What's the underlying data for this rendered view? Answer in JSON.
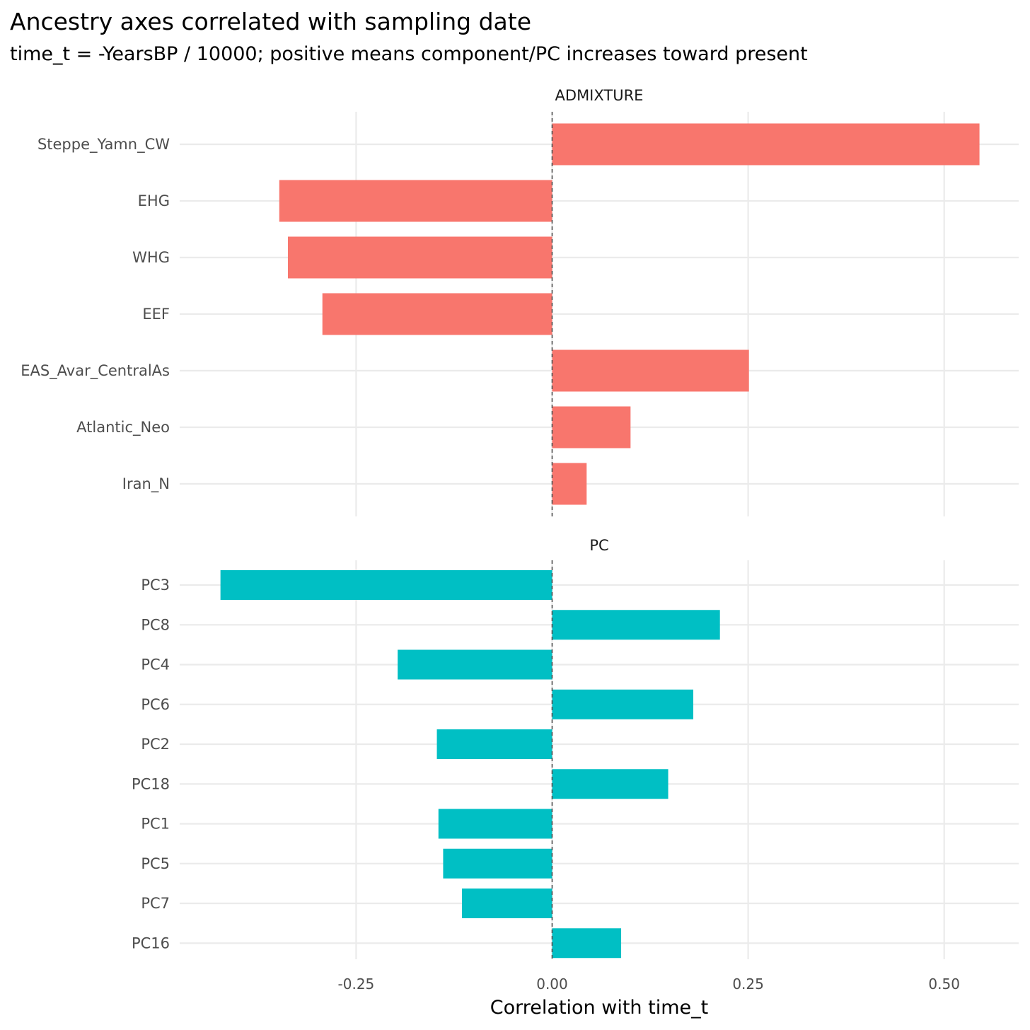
{
  "chart_data": {
    "type": "bar",
    "orientation": "horizontal",
    "title": "Ancestry axes correlated with sampling date",
    "subtitle": "time_t = -YearsBP / 10000; positive means component/PC increases toward present",
    "xlabel": "Correlation with time_t",
    "xlim": [
      -0.475,
      0.595
    ],
    "xticks": [
      -0.25,
      0.0,
      0.25,
      0.5
    ],
    "xtick_labels": [
      "-0.25",
      "0.00",
      "0.25",
      "0.50"
    ],
    "reference_line": 0,
    "panels": [
      {
        "name": "ADMIXTURE",
        "color": "#F8766D",
        "categories": [
          "Steppe_Yamn_CW",
          "EHG",
          "WHG",
          "EEF",
          "EAS_Avar_CentralAs",
          "Atlantic_Neo",
          "Iran_N"
        ],
        "values": [
          0.545,
          -0.348,
          -0.337,
          -0.293,
          0.251,
          0.1,
          0.044
        ]
      },
      {
        "name": "PC",
        "color": "#00BFC4",
        "categories": [
          "PC3",
          "PC8",
          "PC4",
          "PC6",
          "PC2",
          "PC18",
          "PC1",
          "PC5",
          "PC7",
          "PC16"
        ],
        "values": [
          -0.423,
          0.214,
          -0.197,
          0.18,
          -0.147,
          0.148,
          -0.145,
          -0.139,
          -0.115,
          0.088
        ]
      }
    ]
  }
}
